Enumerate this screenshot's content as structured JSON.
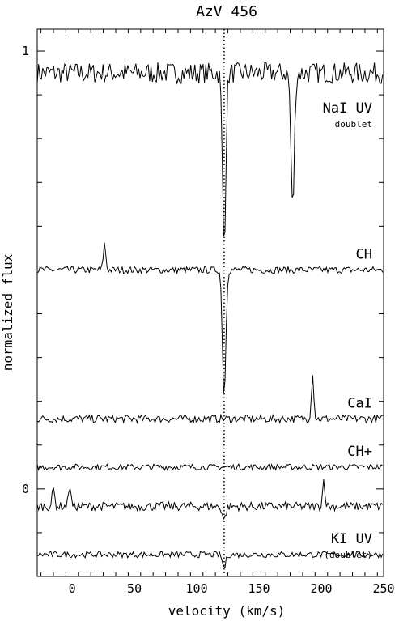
{
  "chart_data": {
    "type": "line",
    "title": "AzV 456",
    "xlabel": "velocity (km/s)",
    "ylabel": "normalized flux",
    "xlim": [
      -28,
      250
    ],
    "ylim": [
      -0.2,
      1.05
    ],
    "x_ticks": [
      0,
      50,
      100,
      150,
      200,
      250
    ],
    "y_ticks_labeled": [
      0,
      1
    ],
    "reference_velocity": 122,
    "series": [
      {
        "name": "NaI UV",
        "sublabel": "doublet",
        "baseline": 0.95,
        "absorptions": [
          {
            "v": 122,
            "depth": 0.39
          },
          {
            "v": 177,
            "depth": 0.31
          }
        ],
        "emissions": []
      },
      {
        "name": "CH",
        "baseline": 0.5,
        "absorptions": [
          {
            "v": 122,
            "depth": 0.29
          }
        ],
        "emissions": [
          {
            "v": 26,
            "height": 0.06
          }
        ]
      },
      {
        "name": "CaI",
        "baseline": 0.16,
        "absorptions": [],
        "emissions": [
          {
            "v": 193,
            "height": 0.1
          }
        ]
      },
      {
        "name": "CH+",
        "baseline": 0.05,
        "absorptions": [],
        "emissions": []
      },
      {
        "name": "",
        "baseline": -0.04,
        "absorptions": [
          {
            "v": 122,
            "depth": 0.03
          }
        ],
        "emissions": [
          {
            "v": -15,
            "height": 0.04
          },
          {
            "v": -2,
            "height": 0.05
          },
          {
            "v": 202,
            "height": 0.06
          }
        ]
      },
      {
        "name": "KI UV",
        "sublabel": "(doublet)",
        "baseline": -0.15,
        "absorptions": [
          {
            "v": 122,
            "depth": 0.03
          }
        ],
        "emissions": []
      }
    ]
  }
}
